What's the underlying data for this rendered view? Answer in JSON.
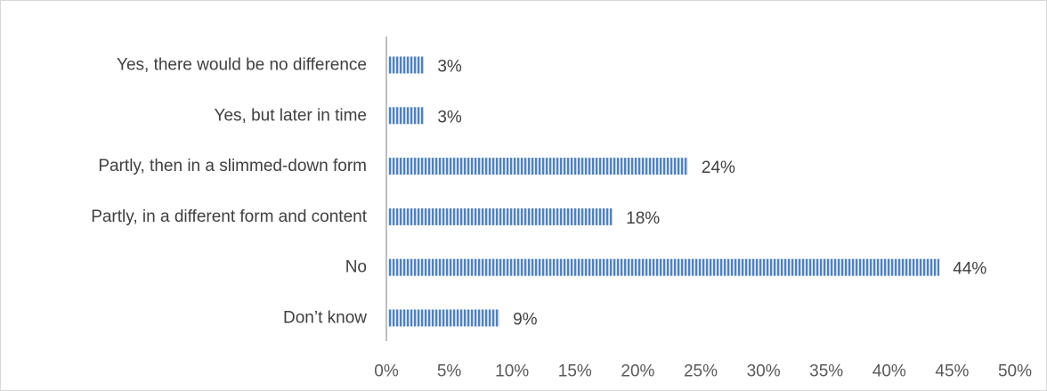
{
  "chart_data": {
    "type": "bar",
    "orientation": "horizontal",
    "title": "",
    "xlabel": "",
    "ylabel": "",
    "categories": [
      "Yes, there would be no difference",
      "Yes, but later in time",
      "Partly, then in a slimmed-down form",
      "Partly, in a different form and content",
      "No",
      "Don’t know"
    ],
    "values": [
      3,
      3,
      24,
      18,
      44,
      9
    ],
    "data_labels": [
      "3%",
      "3%",
      "24%",
      "18%",
      "44%",
      "9%"
    ],
    "xlim": [
      0,
      50
    ],
    "xticks": [
      0,
      5,
      10,
      15,
      20,
      25,
      30,
      35,
      40,
      45,
      50
    ],
    "xtick_labels": [
      "0%",
      "5%",
      "10%",
      "15%",
      "20%",
      "25%",
      "30%",
      "35%",
      "40%",
      "45%",
      "50%"
    ],
    "grid": false,
    "legend": "none",
    "bar_color": "#4f81bd",
    "bar_pattern": "vertical-stripes",
    "axis_color": "#bfbfbf"
  }
}
